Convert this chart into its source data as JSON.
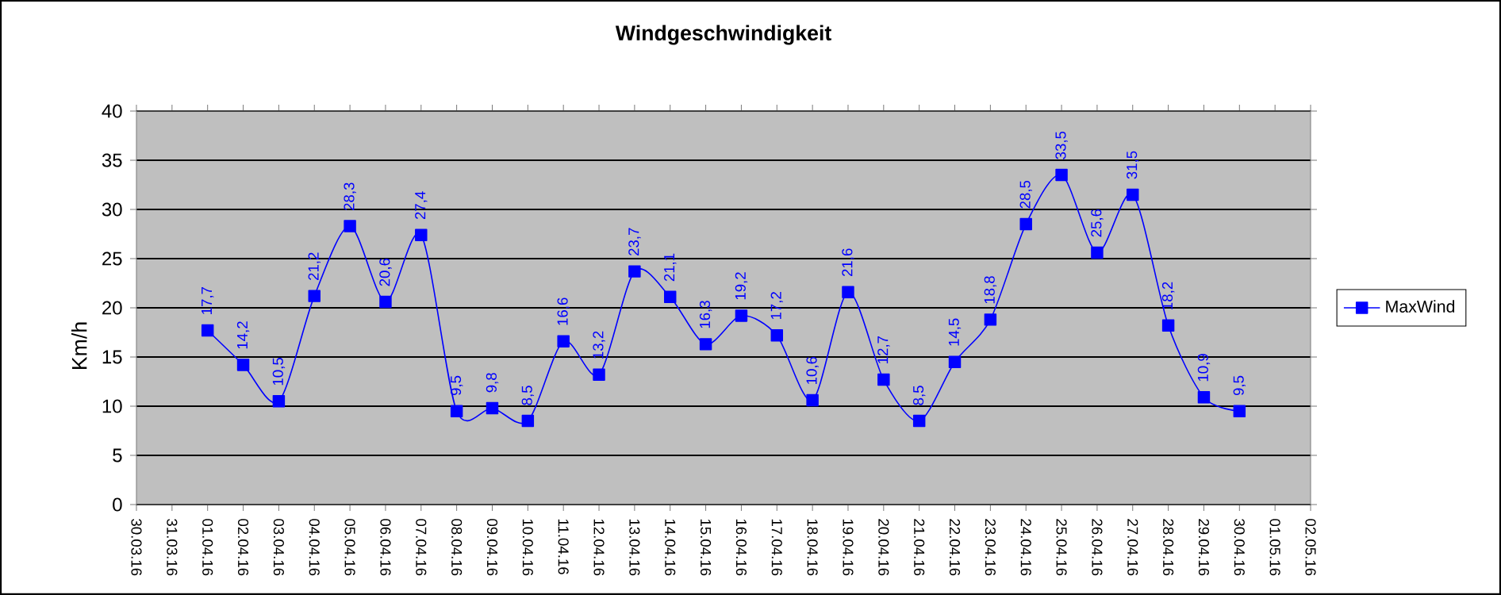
{
  "chart_data": {
    "type": "line",
    "title": "Windgeschwindigkeit",
    "ylabel": "Km/h",
    "categories": [
      "30.03.16",
      "31.03.16",
      "01.04.16",
      "02.04.16",
      "03.04.16",
      "04.04.16",
      "05.04.16",
      "06.04.16",
      "07.04.16",
      "08.04.16",
      "09.04.16",
      "10.04.16",
      "11.04.16",
      "12.04.16",
      "13.04.16",
      "14.04.16",
      "15.04.16",
      "16.04.16",
      "17.04.16",
      "18.04.16",
      "19.04.16",
      "20.04.16",
      "21.04.16",
      "22.04.16",
      "23.04.16",
      "24.04.16",
      "25.04.16",
      "26.04.16",
      "27.04.16",
      "28.04.16",
      "29.04.16",
      "30.04.16",
      "01.05.16",
      "02.05.16"
    ],
    "series": [
      {
        "name": "MaxWind",
        "color": "#0000ff",
        "values": [
          null,
          null,
          17.7,
          14.2,
          10.5,
          21.2,
          28.3,
          20.6,
          27.4,
          9.5,
          9.8,
          8.5,
          16.6,
          13.2,
          23.7,
          21.1,
          16.3,
          19.2,
          17.2,
          10.6,
          21.6,
          12.7,
          8.5,
          14.5,
          18.8,
          28.5,
          33.5,
          25.6,
          31.5,
          18.2,
          10.9,
          9.5,
          null,
          null
        ],
        "value_labels": [
          null,
          null,
          "17,7",
          "14,2",
          "10,5",
          "21,2",
          "28,3",
          "20,6",
          "27,4",
          "9,5",
          "9,8",
          "8,5",
          "16,6",
          "13,2",
          "23,7",
          "21,1",
          "16,3",
          "19,2",
          "17,2",
          "10,6",
          "21,6",
          "12,7",
          "8,5",
          "14,5",
          "18,8",
          "28,5",
          "33,5",
          "25,6",
          "31,5",
          "18,2",
          "10,9",
          "9,5",
          null,
          null
        ]
      }
    ],
    "ylim": [
      0,
      40
    ],
    "yticks": [
      0,
      5,
      10,
      15,
      20,
      25,
      30,
      35,
      40
    ],
    "grid": "y",
    "legend": "right",
    "marker": "square",
    "line_style": "solid"
  }
}
